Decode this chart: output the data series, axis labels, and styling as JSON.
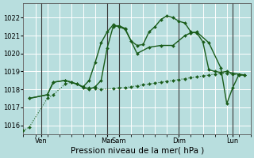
{
  "background_color": "#b8dede",
  "grid_color": "#ffffff",
  "line_color": "#1a5c1a",
  "ylabel": "Pression niveau de la mer( hPa )",
  "ylim": [
    1015.5,
    1022.8
  ],
  "yticks": [
    1016,
    1017,
    1018,
    1019,
    1020,
    1021,
    1022
  ],
  "xlim": [
    0,
    19
  ],
  "xtick_positions": [
    1.5,
    7,
    8,
    13,
    17.5
  ],
  "xtick_labels": [
    "Ven",
    "Mar",
    "Sam",
    "Dim",
    "Lun"
  ],
  "vline_positions": [
    1.5,
    7,
    8,
    13,
    17.5
  ],
  "series": [
    {
      "x": [
        0,
        0.5,
        2.0,
        2.5,
        3.5,
        4.0,
        4.5,
        5.0,
        5.5,
        6.0,
        6.5,
        7.5,
        8.0,
        8.5,
        9.0,
        9.5,
        10.0,
        10.5,
        11.0,
        11.5,
        12.0,
        12.5,
        13.0,
        13.5,
        14.0,
        14.5,
        15.0,
        15.5,
        16.0,
        16.5,
        17.0,
        17.5,
        18.0,
        18.5
      ],
      "y": [
        1015.7,
        1015.9,
        1017.5,
        1017.7,
        1018.3,
        1018.4,
        1018.3,
        1018.15,
        1018.1,
        1018.05,
        1018.0,
        1018.05,
        1018.1,
        1018.1,
        1018.15,
        1018.2,
        1018.25,
        1018.3,
        1018.35,
        1018.4,
        1018.45,
        1018.5,
        1018.55,
        1018.6,
        1018.65,
        1018.7,
        1018.75,
        1018.8,
        1018.85,
        1018.9,
        1018.9,
        1018.85,
        1018.8,
        1018.8
      ],
      "style": "dotted",
      "marker": "D",
      "markersize": 2.0
    },
    {
      "x": [
        0.5,
        2.0,
        2.5,
        3.5,
        4.5,
        5.0,
        5.5,
        6.0,
        6.5,
        7.0,
        7.5,
        8.0,
        8.5,
        9.5,
        10.5,
        11.5,
        12.5,
        13.5,
        14.0,
        14.5,
        15.5,
        16.5,
        17.0,
        17.5,
        18.0,
        18.5
      ],
      "y": [
        1017.5,
        1017.7,
        1018.4,
        1018.5,
        1018.3,
        1018.1,
        1018.0,
        1018.15,
        1018.5,
        1020.3,
        1021.5,
        1021.55,
        1021.4,
        1020.0,
        1020.35,
        1020.45,
        1020.45,
        1021.0,
        1021.15,
        1021.2,
        1020.6,
        1019.2,
        1017.2,
        1018.1,
        1018.8,
        1018.8
      ],
      "style": "solid",
      "marker": "D",
      "markersize": 2.0
    },
    {
      "x": [
        0.5,
        2.0,
        2.5,
        3.5,
        4.0,
        5.0,
        5.5,
        6.0,
        6.5,
        7.0,
        7.5,
        8.0,
        8.5,
        9.0,
        9.5,
        10.0,
        10.5,
        11.0,
        11.5,
        12.0,
        12.5,
        13.0,
        13.5,
        14.0,
        14.5,
        15.0,
        15.5,
        16.0,
        16.5,
        17.0,
        17.5,
        18.0,
        18.5
      ],
      "y": [
        1017.5,
        1017.7,
        1018.4,
        1018.5,
        1018.4,
        1018.15,
        1018.5,
        1019.5,
        1020.6,
        1021.2,
        1021.6,
        1021.5,
        1021.35,
        1020.7,
        1020.45,
        1020.5,
        1021.2,
        1021.5,
        1021.9,
        1022.1,
        1022.0,
        1021.8,
        1021.7,
        1021.2,
        1021.15,
        1020.65,
        1019.1,
        1019.0,
        1018.95,
        1019.0,
        1018.9,
        1018.85,
        1018.8
      ],
      "style": "solid",
      "marker": "D",
      "markersize": 2.0
    }
  ],
  "tick_fontsize": 6.0,
  "xlabel_fontsize": 7.5
}
